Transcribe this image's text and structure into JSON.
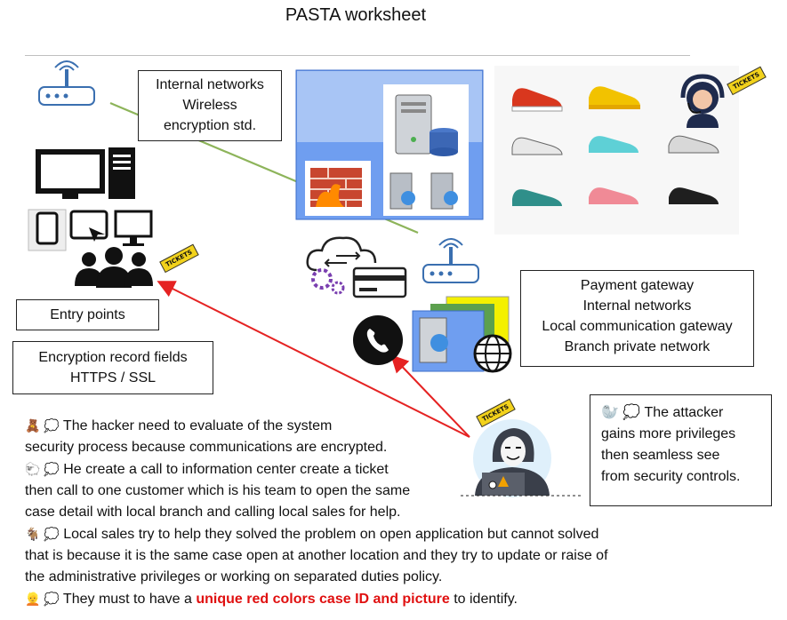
{
  "title": "PASTA worksheet",
  "boxes": {
    "internal_networks": [
      "Internal networks",
      "Wireless",
      "encryption std."
    ],
    "entry_points": "Entry points",
    "encryption_record": [
      "Encryption record fields",
      "HTTPS / SSL"
    ],
    "gateways": [
      "Payment gateway",
      "Internal networks",
      "Local communication gateway",
      "Branch private network"
    ],
    "attacker": [
      "The attacker",
      "gains more privileges",
      "then seamless see",
      "from security controls."
    ]
  },
  "attacker_emoji": "🦭 💭",
  "ticket_label": "TICKETS",
  "notes": [
    {
      "emoji": "🧸 💭",
      "lines": [
        "The hacker need to evaluate of the system",
        "security process because communications are encrypted."
      ]
    },
    {
      "emoji": "🐑 💭",
      "lines": [
        "He create a call to information center create a ticket",
        "then call to one customer which is his team to open the same",
        "case detail with local branch and calling local sales for help."
      ]
    },
    {
      "emoji": "🐐 💭",
      "lines": [
        "Local sales try to help they solved the problem on open application but cannot solved",
        "that is because it is the same case open at another location and they try to update or raise of",
        "the administrative privileges or working on separated duties policy."
      ]
    }
  ],
  "last_note": {
    "emoji": "👱 💭",
    "before": "They must to have a",
    "highlight": "unique red colors case ID and picture",
    "after": "to identify."
  },
  "colors": {
    "green_arrow": "#8db45a",
    "red_arrow": "#e52222",
    "server_panel": "#6f9ef0",
    "highlight": "#e01010"
  }
}
